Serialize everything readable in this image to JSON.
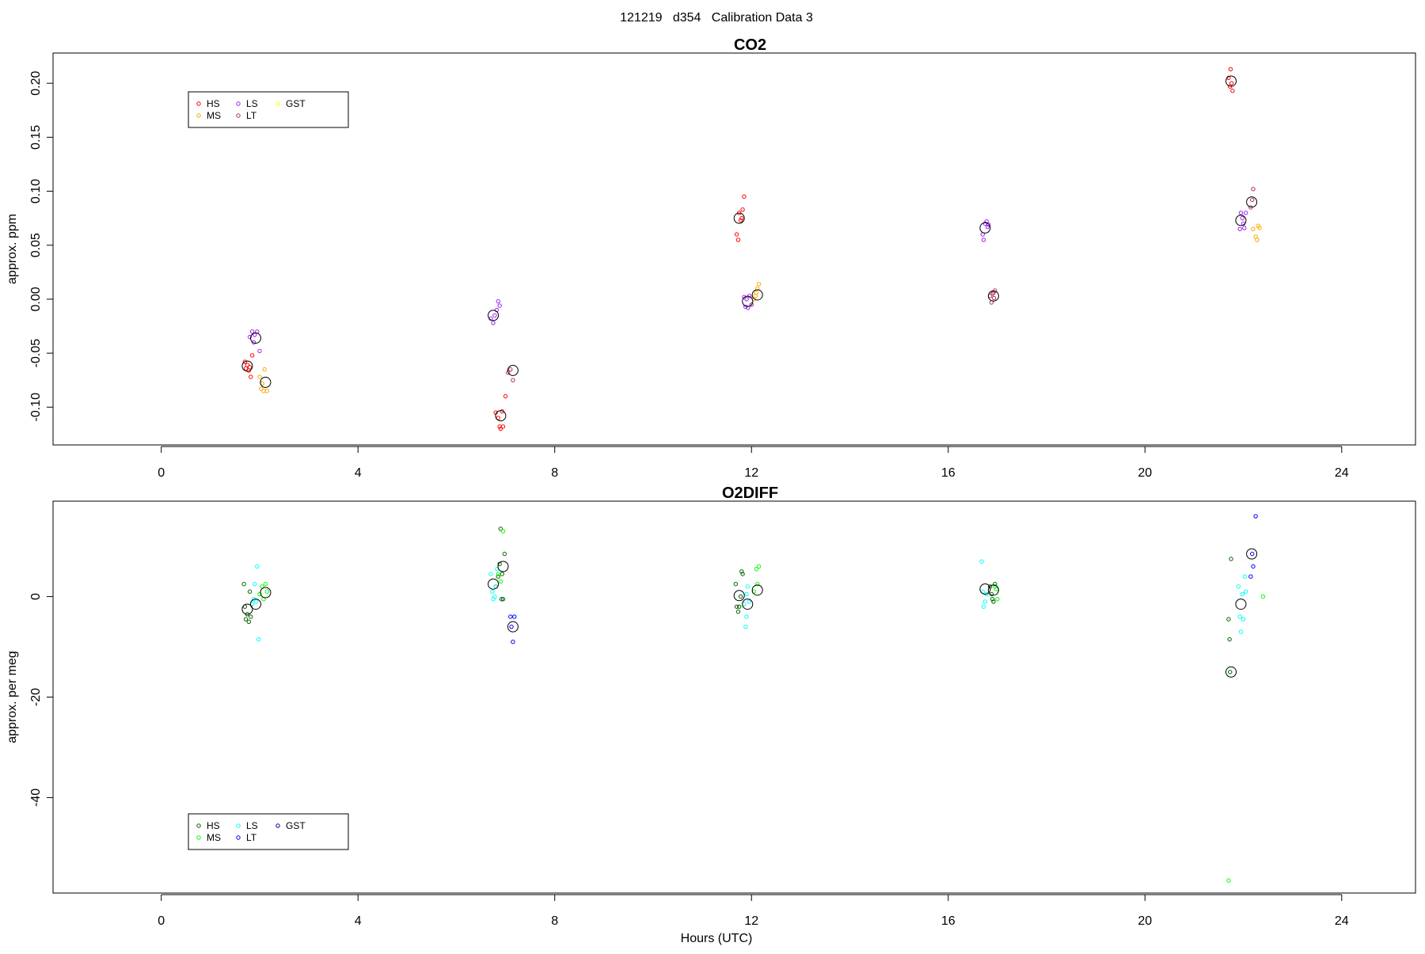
{
  "page_title": "121219   d354   Calibration Data 3",
  "x_axis_label": "Hours (UTC)",
  "chart_data": [
    {
      "type": "scatter",
      "title": "CO2",
      "xlabel": "",
      "ylabel": "approx. ppm",
      "xlim": [
        -2.2,
        25.5
      ],
      "ylim": [
        -0.135,
        0.228
      ],
      "xticks": [
        0,
        4,
        8,
        12,
        16,
        20,
        24
      ],
      "yticks": [
        -0.1,
        -0.05,
        0.0,
        0.05,
        0.1,
        0.15,
        0.2
      ],
      "ytick_labels": [
        "-0.10",
        "-0.05",
        "0.00",
        "0.05",
        "0.10",
        "0.15",
        "0.20"
      ],
      "grid": false,
      "legend_position": "top-left",
      "legend": [
        {
          "name": "HS",
          "color": "#ff0000"
        },
        {
          "name": "MS",
          "color": "#ffa500"
        },
        {
          "name": "LS",
          "color": "#a020f0"
        },
        {
          "name": "LT",
          "color": "#b03060"
        },
        {
          "name": "GST",
          "color": "#ffff00"
        }
      ],
      "series": [
        {
          "name": "HS",
          "color": "#ff0000",
          "points": [
            [
              1.7,
              -0.058
            ],
            [
              1.72,
              -0.064
            ],
            [
              1.75,
              -0.061
            ],
            [
              1.78,
              -0.066
            ],
            [
              1.8,
              -0.063
            ],
            [
              1.82,
              -0.072
            ],
            [
              1.85,
              -0.052
            ],
            [
              6.8,
              -0.105
            ],
            [
              6.85,
              -0.11
            ],
            [
              6.88,
              -0.118
            ],
            [
              6.9,
              -0.12
            ],
            [
              6.93,
              -0.104
            ],
            [
              7.0,
              -0.09
            ],
            [
              6.95,
              -0.118
            ],
            [
              11.7,
              0.06
            ],
            [
              11.73,
              0.055
            ],
            [
              11.75,
              0.08
            ],
            [
              11.78,
              0.073
            ],
            [
              11.82,
              0.083
            ],
            [
              11.85,
              0.095
            ],
            [
              11.8,
              0.075
            ],
            [
              21.7,
              0.205
            ],
            [
              21.73,
              0.197
            ],
            [
              21.76,
              0.2
            ],
            [
              21.78,
              0.193
            ],
            [
              21.74,
              0.213
            ]
          ]
        },
        {
          "name": "MS",
          "color": "#ffa500",
          "points": [
            [
              2.0,
              -0.072
            ],
            [
              2.05,
              -0.078
            ],
            [
              2.08,
              -0.085
            ],
            [
              2.1,
              -0.065
            ],
            [
              2.15,
              -0.085
            ],
            [
              2.03,
              -0.083
            ],
            [
              12.0,
              -0.005
            ],
            [
              12.05,
              0.0
            ],
            [
              12.1,
              0.006
            ],
            [
              12.12,
              0.01
            ],
            [
              12.15,
              0.014
            ],
            [
              12.08,
              0.003
            ],
            [
              22.2,
              0.065
            ],
            [
              22.25,
              0.058
            ],
            [
              22.28,
              0.055
            ],
            [
              22.3,
              0.068
            ],
            [
              22.33,
              0.066
            ]
          ]
        },
        {
          "name": "LS",
          "color": "#a020f0",
          "points": [
            [
              1.8,
              -0.035
            ],
            [
              1.85,
              -0.03
            ],
            [
              1.88,
              -0.04
            ],
            [
              1.9,
              -0.033
            ],
            [
              1.95,
              -0.03
            ],
            [
              2.0,
              -0.048
            ],
            [
              6.7,
              -0.018
            ],
            [
              6.75,
              -0.022
            ],
            [
              6.78,
              -0.015
            ],
            [
              6.82,
              -0.01
            ],
            [
              6.85,
              -0.002
            ],
            [
              6.88,
              -0.006
            ],
            [
              11.85,
              0.002
            ],
            [
              11.88,
              -0.007
            ],
            [
              11.9,
              0.0
            ],
            [
              11.93,
              -0.008
            ],
            [
              11.96,
              0.003
            ],
            [
              12.0,
              -0.005
            ],
            [
              16.7,
              0.06
            ],
            [
              16.72,
              0.055
            ],
            [
              16.75,
              0.07
            ],
            [
              16.78,
              0.072
            ],
            [
              16.8,
              0.067
            ],
            [
              16.82,
              0.069
            ],
            [
              21.95,
              0.08
            ],
            [
              21.98,
              0.075
            ],
            [
              22.0,
              0.07
            ],
            [
              22.02,
              0.066
            ],
            [
              22.05,
              0.08
            ],
            [
              21.93,
              0.065
            ]
          ]
        },
        {
          "name": "LT",
          "color": "#b03060",
          "points": [
            [
              7.1,
              -0.065
            ],
            [
              7.15,
              -0.075
            ],
            [
              7.05,
              -0.068
            ],
            [
              16.85,
              0.003
            ],
            [
              16.88,
              -0.003
            ],
            [
              16.9,
              0.005
            ],
            [
              16.93,
              0.001
            ],
            [
              16.95,
              0.008
            ],
            [
              16.92,
              0.006
            ],
            [
              22.15,
              0.085
            ],
            [
              22.2,
              0.102
            ],
            [
              22.18,
              0.092
            ]
          ]
        }
      ],
      "means": [
        [
          1.75,
          -0.062
        ],
        [
          1.92,
          -0.036
        ],
        [
          2.12,
          -0.077
        ],
        [
          6.75,
          -0.015
        ],
        [
          6.9,
          -0.108
        ],
        [
          7.15,
          -0.066
        ],
        [
          11.75,
          0.075
        ],
        [
          11.92,
          -0.002
        ],
        [
          12.12,
          0.004
        ],
        [
          16.75,
          0.066
        ],
        [
          16.92,
          0.003
        ],
        [
          21.75,
          0.202
        ],
        [
          21.95,
          0.073
        ],
        [
          22.17,
          0.09
        ]
      ]
    },
    {
      "type": "scatter",
      "title": "O2DIFF",
      "xlabel": "Hours (UTC)",
      "ylabel": "approx. per meg",
      "xlim": [
        -2.2,
        25.5
      ],
      "ylim": [
        -59,
        19
      ],
      "xticks": [
        0,
        4,
        8,
        12,
        16,
        20,
        24
      ],
      "yticks": [
        -40,
        -20,
        0
      ],
      "ytick_labels": [
        "-40",
        "-20",
        "0"
      ],
      "grid": false,
      "legend_position": "bottom-left",
      "legend": [
        {
          "name": "HS",
          "color": "#006400"
        },
        {
          "name": "MS",
          "color": "#00ff00"
        },
        {
          "name": "LS",
          "color": "#00ffff"
        },
        {
          "name": "LT",
          "color": "#0000ff"
        },
        {
          "name": "GST",
          "color": "#00008b"
        }
      ],
      "series": [
        {
          "name": "HS",
          "color": "#006400",
          "points": [
            [
              1.7,
              -2.0
            ],
            [
              1.72,
              -4.5
            ],
            [
              1.75,
              -3.5
            ],
            [
              1.78,
              -5.0
            ],
            [
              1.8,
              1.0
            ],
            [
              1.68,
              2.5
            ],
            [
              1.82,
              -4.0
            ],
            [
              6.8,
              2.0
            ],
            [
              6.85,
              4.0
            ],
            [
              6.88,
              6.5
            ],
            [
              6.92,
              -0.5
            ],
            [
              6.95,
              -0.5
            ],
            [
              6.9,
              13.5
            ],
            [
              6.98,
              8.5
            ],
            [
              6.93,
              4.5
            ],
            [
              11.7,
              -2.0
            ],
            [
              11.73,
              -3.0
            ],
            [
              11.75,
              -2.0
            ],
            [
              11.78,
              0.0
            ],
            [
              11.8,
              5.0
            ],
            [
              11.82,
              4.5
            ],
            [
              11.68,
              2.5
            ],
            [
              16.85,
              2.0
            ],
            [
              16.88,
              0.5
            ],
            [
              16.9,
              -0.5
            ],
            [
              16.92,
              -1.0
            ],
            [
              16.95,
              2.5
            ],
            [
              21.7,
              -4.5
            ],
            [
              21.72,
              -8.5
            ],
            [
              21.75,
              7.5
            ],
            [
              21.73,
              -15.0
            ]
          ]
        },
        {
          "name": "MS",
          "color": "#00ff00",
          "points": [
            [
              2.0,
              0.5
            ],
            [
              2.05,
              2.0
            ],
            [
              2.08,
              -0.5
            ],
            [
              2.12,
              2.5
            ],
            [
              2.15,
              1.0
            ],
            [
              6.85,
              4.5
            ],
            [
              6.95,
              13.0
            ],
            [
              6.9,
              3.0
            ],
            [
              12.05,
              1.0
            ],
            [
              12.1,
              5.5
            ],
            [
              12.12,
              2.5
            ],
            [
              12.15,
              6.0
            ],
            [
              16.95,
              2.0
            ],
            [
              17.0,
              -0.5
            ],
            [
              16.98,
              1.5
            ],
            [
              21.7,
              -56.5
            ],
            [
              22.4,
              0.0
            ]
          ]
        },
        {
          "name": "LS",
          "color": "#00ffff",
          "points": [
            [
              1.85,
              -1.5
            ],
            [
              1.88,
              -0.5
            ],
            [
              1.9,
              2.5
            ],
            [
              1.95,
              6.0
            ],
            [
              1.98,
              -8.5
            ],
            [
              1.93,
              -1.0
            ],
            [
              6.7,
              4.5
            ],
            [
              6.73,
              1.0
            ],
            [
              6.75,
              -0.5
            ],
            [
              6.78,
              0.0
            ],
            [
              6.8,
              2.0
            ],
            [
              6.83,
              5.5
            ],
            [
              11.85,
              -1.5
            ],
            [
              11.88,
              -6.0
            ],
            [
              11.9,
              0.5
            ],
            [
              11.92,
              2.0
            ],
            [
              11.95,
              -1.0
            ],
            [
              11.9,
              -4.0
            ],
            [
              16.7,
              1.0
            ],
            [
              16.72,
              -2.0
            ],
            [
              16.75,
              -1.0
            ],
            [
              16.78,
              0.5
            ],
            [
              16.68,
              7.0
            ],
            [
              21.9,
              2.0
            ],
            [
              21.93,
              -4.0
            ],
            [
              21.95,
              -7.0
            ],
            [
              21.98,
              0.5
            ],
            [
              22.0,
              -4.5
            ],
            [
              22.03,
              4.0
            ],
            [
              22.05,
              1.0
            ]
          ]
        },
        {
          "name": "LT",
          "color": "#0000ff",
          "points": [
            [
              7.1,
              -4.0
            ],
            [
              7.12,
              -6.0
            ],
            [
              7.15,
              -9.0
            ],
            [
              7.18,
              -4.0
            ],
            [
              22.15,
              4.0
            ],
            [
              22.2,
              6.0
            ],
            [
              22.25,
              16.0
            ],
            [
              22.18,
              8.5
            ]
          ]
        }
      ],
      "means": [
        [
          1.75,
          -2.5
        ],
        [
          1.92,
          -1.5
        ],
        [
          2.12,
          0.8
        ],
        [
          6.75,
          2.5
        ],
        [
          6.95,
          6.0
        ],
        [
          7.15,
          -6.0
        ],
        [
          11.75,
          0.2
        ],
        [
          11.92,
          -1.5
        ],
        [
          12.12,
          1.3
        ],
        [
          16.75,
          1.5
        ],
        [
          16.92,
          1.3
        ],
        [
          21.75,
          -15.0
        ],
        [
          21.95,
          -1.5
        ],
        [
          22.17,
          8.5
        ]
      ]
    }
  ]
}
